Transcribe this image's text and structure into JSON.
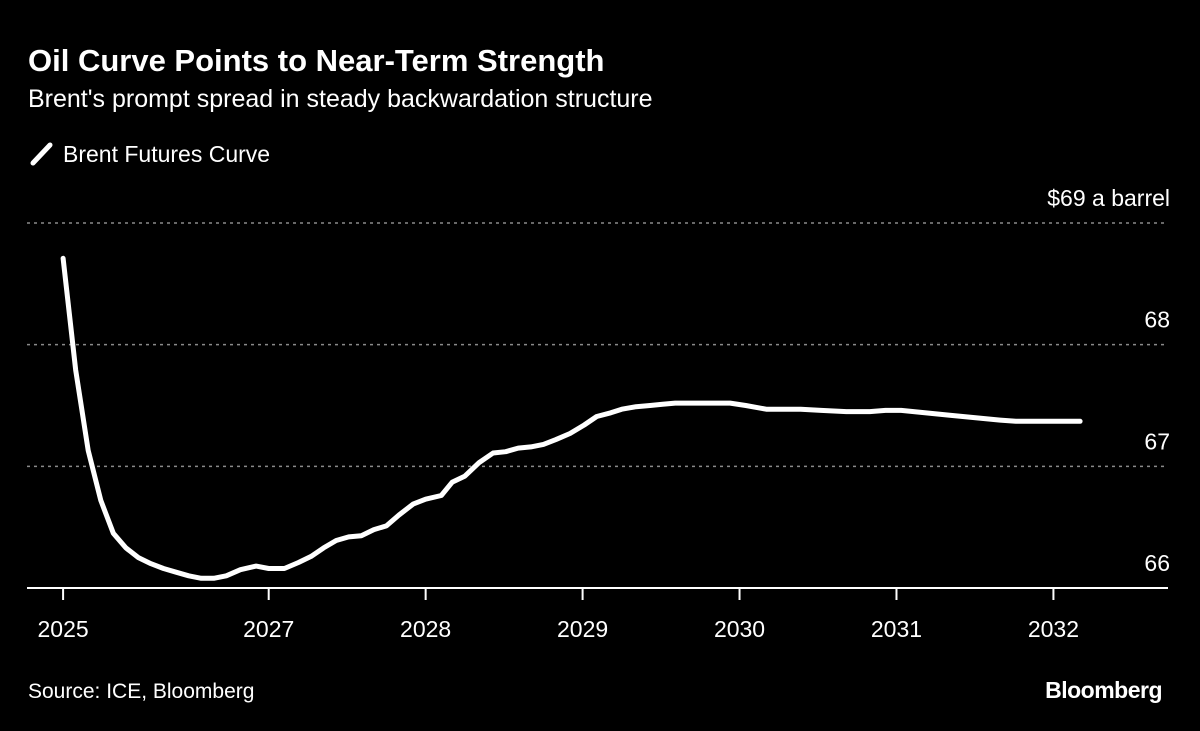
{
  "colors": {
    "background": "#000000",
    "line": "#ffffff",
    "grid": "#8a8a8a",
    "text": "#ffffff"
  },
  "chart_data": {
    "type": "line",
    "title": "Oil Curve Points to Near-Term Strength",
    "subtitle": "Brent's prompt spread in steady backwardation structure",
    "ylabel": "$69 a barrel",
    "xlabel": "",
    "ylim": [
      66,
      69
    ],
    "xlim": [
      2025.46,
      2032.73
    ],
    "grid": true,
    "legend_placement": "top-left",
    "y_ticks": [
      {
        "value": 69,
        "label": "$69 a barrel"
      },
      {
        "value": 68,
        "label": "68"
      },
      {
        "value": 67,
        "label": "67"
      },
      {
        "value": 66,
        "label": "66"
      }
    ],
    "x_ticks": [
      {
        "value": 2025.69,
        "label": "2025"
      },
      {
        "value": 2027,
        "label": "2027"
      },
      {
        "value": 2028,
        "label": "2028"
      },
      {
        "value": 2029,
        "label": "2029"
      },
      {
        "value": 2030,
        "label": "2030"
      },
      {
        "value": 2031,
        "label": "2031"
      },
      {
        "value": 2032,
        "label": "2032"
      }
    ],
    "series": [
      {
        "name": "Brent Futures Curve",
        "x": [
          2025.69,
          2025.77,
          2025.85,
          2025.93,
          2026.01,
          2026.09,
          2026.17,
          2026.25,
          2026.33,
          2026.41,
          2026.49,
          2026.57,
          2026.65,
          2026.73,
          2026.82,
          2026.92,
          2027.0,
          2027.1,
          2027.19,
          2027.27,
          2027.35,
          2027.43,
          2027.51,
          2027.59,
          2027.67,
          2027.75,
          2027.83,
          2027.92,
          2028.0,
          2028.1,
          2028.17,
          2028.25,
          2028.34,
          2028.43,
          2028.51,
          2028.59,
          2028.67,
          2028.75,
          2028.83,
          2028.92,
          2029.01,
          2029.09,
          2029.18,
          2029.25,
          2029.34,
          2029.43,
          2029.51,
          2029.59,
          2029.69,
          2029.82,
          2029.94,
          2030.04,
          2030.17,
          2030.39,
          2030.52,
          2030.68,
          2030.83,
          2030.93,
          2031.03,
          2031.34,
          2031.66,
          2031.76,
          2031.98,
          2032.17
        ],
        "y": [
          68.71,
          67.79,
          67.13,
          66.72,
          66.45,
          66.33,
          66.25,
          66.2,
          66.16,
          66.13,
          66.1,
          66.08,
          66.08,
          66.1,
          66.15,
          66.18,
          66.16,
          66.16,
          66.21,
          66.26,
          66.33,
          66.39,
          66.42,
          66.43,
          66.48,
          66.51,
          66.6,
          66.69,
          66.73,
          66.76,
          66.87,
          66.92,
          67.03,
          67.11,
          67.12,
          67.15,
          67.16,
          67.18,
          67.22,
          67.27,
          67.34,
          67.41,
          67.44,
          67.47,
          67.49,
          67.5,
          67.51,
          67.52,
          67.52,
          67.52,
          67.52,
          67.5,
          67.47,
          67.47,
          67.46,
          67.45,
          67.45,
          67.46,
          67.46,
          67.42,
          67.38,
          67.37,
          67.37,
          67.37
        ]
      }
    ]
  },
  "footer": {
    "source": "Source: ICE, Bloomberg",
    "logo": "Bloomberg"
  }
}
